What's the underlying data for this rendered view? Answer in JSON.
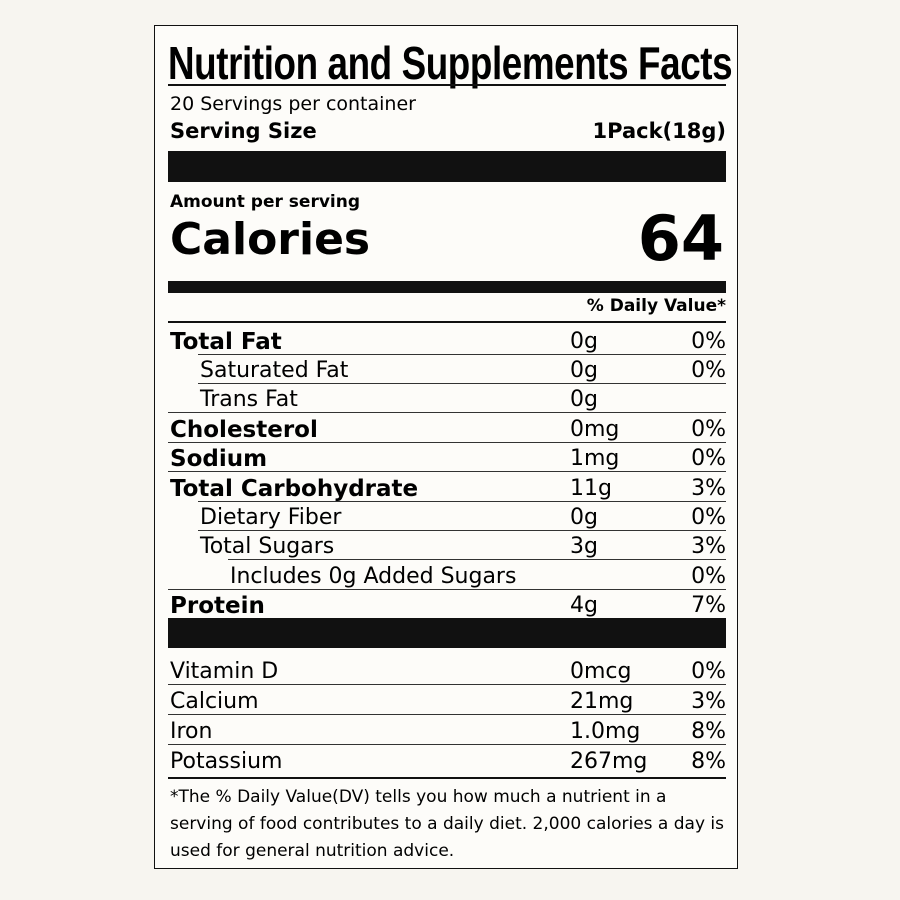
{
  "title": "Nutrition and Supplements Facts",
  "servings_per_container": "20 Servings per container",
  "serving_size": {
    "label": "Serving Size",
    "value": "1Pack(18g)"
  },
  "amount_per_serving": "Amount per serving",
  "calories": {
    "label": "Calories",
    "value": "64"
  },
  "daily_value_header": "% Daily Value*",
  "nutrients": [
    {
      "name": "Total Fat",
      "amount": "0g",
      "dv": "0%",
      "bold": true,
      "indent": 0
    },
    {
      "name": "Saturated Fat",
      "amount": "0g",
      "dv": "0%",
      "bold": false,
      "indent": 1
    },
    {
      "name": "Trans Fat",
      "amount": "0g",
      "dv": "",
      "bold": false,
      "indent": 1
    },
    {
      "name": "Cholesterol",
      "amount": "0mg",
      "dv": "0%",
      "bold": true,
      "indent": 0
    },
    {
      "name": "Sodium",
      "amount": "1mg",
      "dv": "0%",
      "bold": true,
      "indent": 0
    },
    {
      "name": "Total Carbohydrate",
      "amount": "11g",
      "dv": "3%",
      "bold": true,
      "indent": 0
    },
    {
      "name": "Dietary Fiber",
      "amount": "0g",
      "dv": "0%",
      "bold": false,
      "indent": 1
    },
    {
      "name": "Total Sugars",
      "amount": "3g",
      "dv": "3%",
      "bold": false,
      "indent": 1
    },
    {
      "name": "Includes 0g Added Sugars",
      "amount": "",
      "dv": "0%",
      "bold": false,
      "indent": 2
    },
    {
      "name": "Protein",
      "amount": "4g",
      "dv": "7%",
      "bold": true,
      "indent": 0
    }
  ],
  "vitamins": [
    {
      "name": "Vitamin D",
      "amount": "0mcg",
      "dv": "0%"
    },
    {
      "name": "Calcium",
      "amount": "21mg",
      "dv": "3%"
    },
    {
      "name": "Iron",
      "amount": "1.0mg",
      "dv": "8%"
    },
    {
      "name": "Potassium",
      "amount": "267mg",
      "dv": "8%"
    }
  ],
  "footnote": "*The % Daily Value(DV) tells you how much a nutrient in a serving of food contributes to a daily diet. 2,000 calories a day is used for general nutrition advice."
}
